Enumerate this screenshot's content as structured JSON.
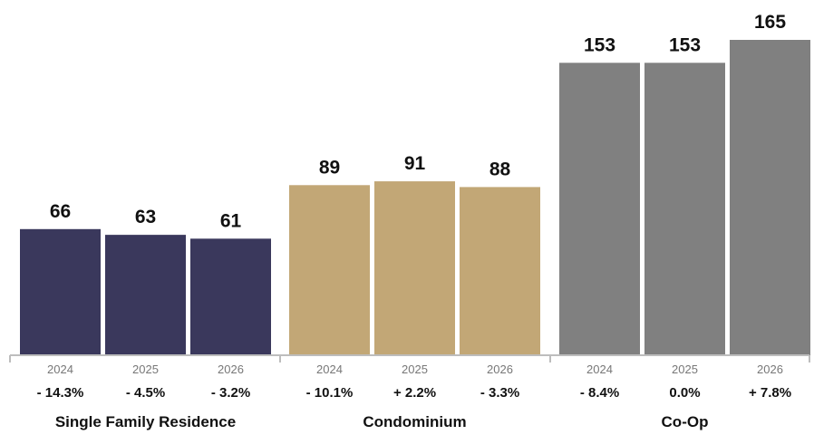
{
  "chart_data": {
    "type": "bar",
    "title": "",
    "xlabel": "",
    "ylabel": "",
    "ylim": [
      0,
      165
    ],
    "grid": false,
    "legend": "none",
    "groups": [
      {
        "name": "Single Family Residence",
        "color": "#3a385c",
        "bars": [
          {
            "year": "2024",
            "value": 66,
            "change": "- 14.3%"
          },
          {
            "year": "2025",
            "value": 63,
            "change": "- 4.5%"
          },
          {
            "year": "2026",
            "value": 61,
            "change": "- 3.2%"
          }
        ]
      },
      {
        "name": "Condominium",
        "color": "#c2a776",
        "bars": [
          {
            "year": "2024",
            "value": 89,
            "change": "- 10.1%"
          },
          {
            "year": "2025",
            "value": 91,
            "change": "+ 2.2%"
          },
          {
            "year": "2026",
            "value": 88,
            "change": "- 3.3%"
          }
        ]
      },
      {
        "name": "Co-Op",
        "color": "#808080",
        "bars": [
          {
            "year": "2024",
            "value": 153,
            "change": "- 8.4%"
          },
          {
            "year": "2025",
            "value": 153,
            "change": "0.0%"
          },
          {
            "year": "2026",
            "value": 165,
            "change": "+ 7.8%"
          }
        ]
      }
    ]
  }
}
